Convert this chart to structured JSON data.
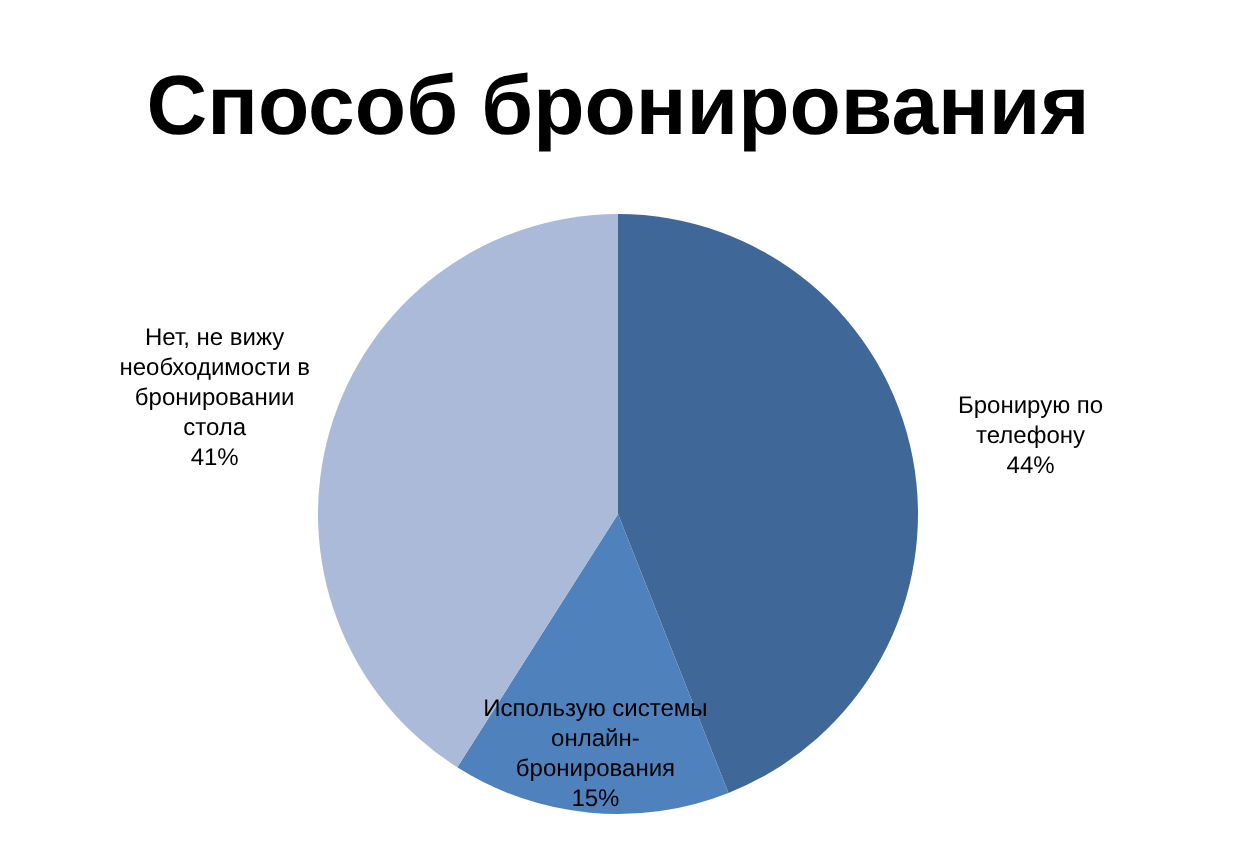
{
  "chart_data": {
    "type": "pie",
    "title": "Способ бронирования",
    "categories": [
      "Бронирую по телефону",
      "Использую системы онлайн-бронирования",
      "Нет, не вижу необходимости в бронировании стола"
    ],
    "values": [
      44,
      15,
      41
    ],
    "value_labels": [
      "44%",
      "15%",
      "41%"
    ],
    "colors": [
      "#3f6797",
      "#4f81bd",
      "#abbad8"
    ],
    "legend": false
  }
}
